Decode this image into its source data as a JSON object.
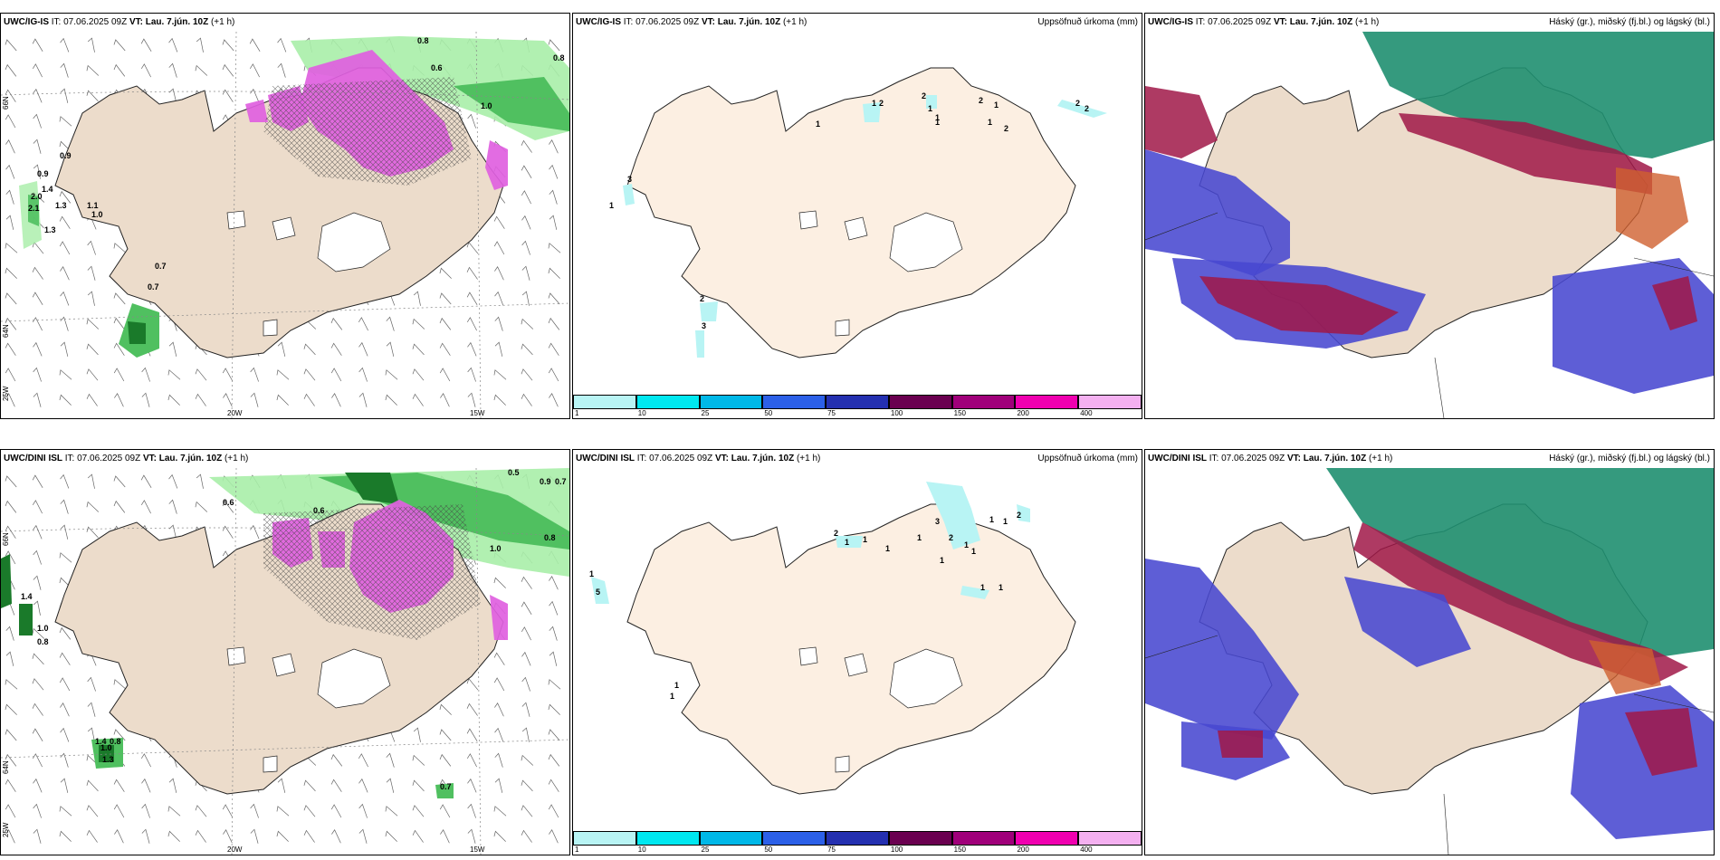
{
  "panels": {
    "tl": {
      "title_model": "UWC/IG-IS",
      "title_it": " IT: 07.06.2025 09Z ",
      "title_vt_label": "VT:",
      "title_vt": " Lau. 7.jún. 10Z",
      "title_lead": " (+1 h)",
      "right_label": ""
    },
    "tm": {
      "title_model": "UWC/IG-IS",
      "title_it": " IT: 07.06.2025 09Z ",
      "title_vt_label": "VT:",
      "title_vt": " Lau. 7.jún. 10Z",
      "title_lead": " (+1 h)",
      "right_label": "Uppsöfnuð úrkoma (mm)"
    },
    "tr": {
      "title_model": "UWC/IG-IS",
      "title_it": " IT: 07.06.2025 09Z ",
      "title_vt_label": "VT:",
      "title_vt": " Lau. 7.jún. 10Z",
      "title_lead": " (+1 h)",
      "right_label": "Háský (gr.), miðský (fj.bl.) og lágský (bl.)"
    },
    "bl": {
      "title_model": "UWC/DINI ISL",
      "title_it": " IT: 07.06.2025 09Z ",
      "title_vt_label": "VT:",
      "title_vt": " Lau. 7.jún. 10Z",
      "title_lead": " (+1 h)",
      "right_label": ""
    },
    "bm": {
      "title_model": "UWC/DINI ISL",
      "title_it": " IT: 07.06.2025 09Z ",
      "title_vt_label": "VT:",
      "title_vt": " Lau. 7.jún. 10Z",
      "title_lead": " (+1 h)",
      "right_label": "Uppsöfnuð úrkoma (mm)"
    },
    "br": {
      "title_model": "UWC/DINI ISL",
      "title_it": " IT: 07.06.2025 09Z ",
      "title_vt_label": "VT:",
      "title_vt": " Lau. 7.jún. 10Z",
      "title_lead": " (+1 h)",
      "right_label": "Háský (gr.), miðský (fj.bl.) og lágský (bl.)"
    }
  },
  "axis_labels": {
    "lon_20": "20W",
    "lon_15": "15W",
    "lon_25": "25W",
    "lat_66": "66N",
    "lat_64": "64N"
  },
  "precip_legend": {
    "ticks": [
      "1",
      "10",
      "25",
      "50",
      "75",
      "100",
      "150",
      "200",
      "400"
    ],
    "colors": [
      "#b8f4f4",
      "#00e8f0",
      "#00b8e8",
      "#2c60e8",
      "#2430b0",
      "#6a0050",
      "#a0007a",
      "#f000b0",
      "#f4b0f0"
    ]
  },
  "precip_values_top": [
    "3",
    "1",
    "2",
    "3",
    "1",
    "1",
    "2",
    "2",
    "1",
    "1",
    "1",
    "2",
    "1",
    "1",
    "2",
    "2",
    "2"
  ],
  "precip_values_bottom": [
    "1",
    "5",
    "1",
    "1",
    "2",
    "1",
    "1",
    "1",
    "1",
    "3",
    "2",
    "1",
    "1",
    "1",
    "1",
    "2",
    "1",
    "1",
    "1"
  ],
  "conv_values_top": [
    "0.8",
    "0.6",
    "0.9",
    "1.0",
    "0.8",
    "0.9",
    "1.4",
    "2.0",
    "2.1",
    "1.3",
    "1.3",
    "0.7",
    "0.7",
    "1.0",
    "1.1"
  ],
  "conv_values_bottom": [
    "0.5",
    "0.9",
    "0.7",
    "0.6",
    "0.6",
    "0.8",
    "1.0",
    "0.8",
    "1.0",
    "1.4",
    "1.0",
    "0.8",
    "1.4",
    "1.3",
    "0.7"
  ],
  "colors": {
    "land": "#ecdccb",
    "land_mid": "#fcefe2",
    "glacier": "#ffffff",
    "convective": "#e060e0",
    "green_light": "#a8eea8",
    "green_mid": "#50c060",
    "green_dark": "#1a7a2a",
    "cloud_high": "#1f8f70",
    "cloud_mid": "#a01848",
    "cloud_low": "#4848d0",
    "precip_light": "#b8f4f4"
  },
  "icons": {
    "wind_barb": "wind-barb-icon"
  }
}
